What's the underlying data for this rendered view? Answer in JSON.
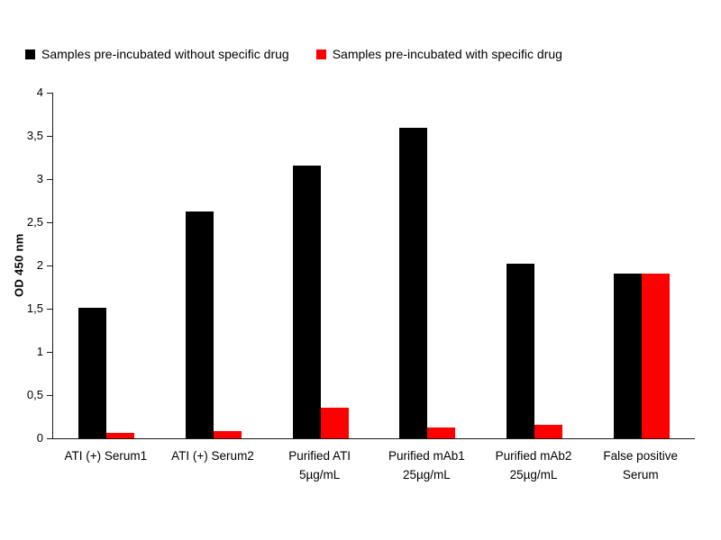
{
  "legend": [
    {
      "label": "Samples pre-incubated without specific drug",
      "color": "#000000"
    },
    {
      "label": "Samples pre-incubated with specific drug",
      "color": "#ff0000"
    }
  ],
  "chart_data": {
    "type": "bar",
    "title": "",
    "xlabel": "",
    "ylabel": "OD 450 nm",
    "ylim": [
      0,
      4
    ],
    "ytick_values": [
      0,
      0.5,
      1,
      1.5,
      2,
      2.5,
      3,
      3.5,
      4
    ],
    "ytick_labels": [
      "0",
      "0,5",
      "1",
      "1,5",
      "2",
      "2,5",
      "3",
      "3,5",
      "4"
    ],
    "grid": false,
    "legend_position": "top-left",
    "categories": [
      [
        "ATI (+) Serum1"
      ],
      [
        "ATI (+) Serum2"
      ],
      [
        "Purified ATI",
        "5µg/mL"
      ],
      [
        "Purified mAb1",
        "25µg/mL"
      ],
      [
        "Purified mAb2",
        "25µg/mL"
      ],
      [
        "False positive",
        "Serum"
      ]
    ],
    "series": [
      {
        "name": "Samples pre-incubated without specific drug",
        "color": "#000000",
        "values": [
          1.51,
          2.63,
          3.16,
          3.59,
          2.02,
          1.91
        ]
      },
      {
        "name": "Samples pre-incubated with specific drug",
        "color": "#ff0000",
        "values": [
          0.06,
          0.08,
          0.35,
          0.13,
          0.16,
          1.91
        ]
      }
    ]
  }
}
